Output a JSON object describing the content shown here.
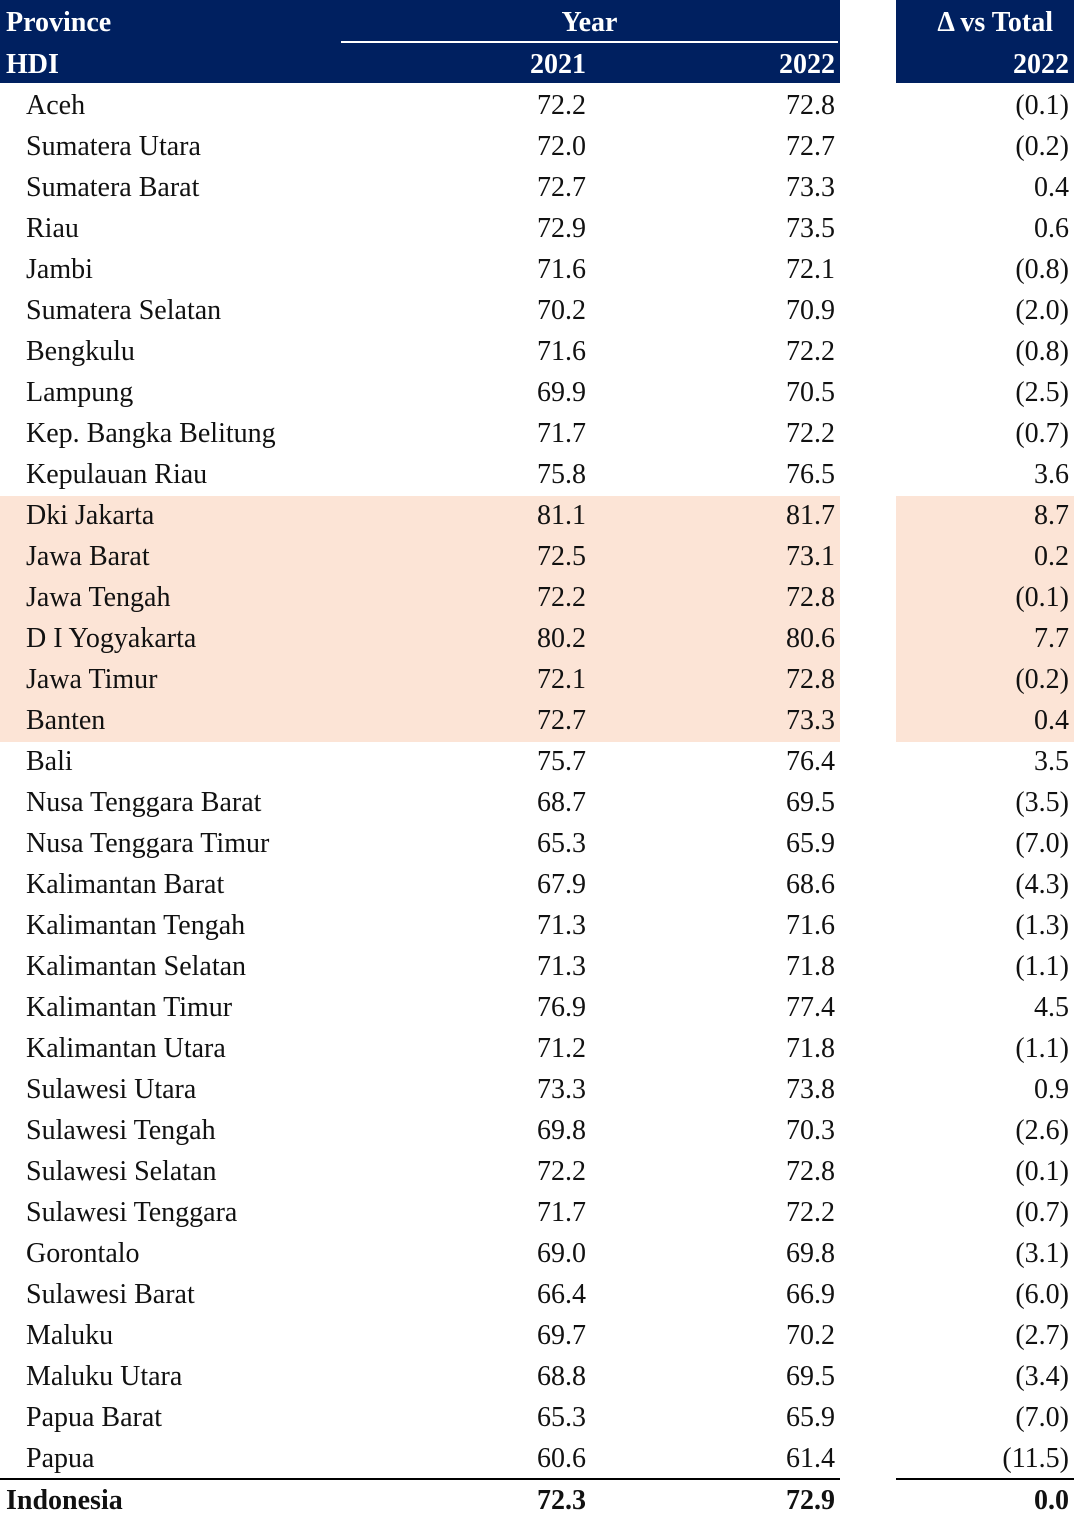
{
  "header": {
    "province": "Province",
    "group": "Year",
    "row_label": "HDI",
    "years": [
      "2021",
      "2022"
    ],
    "delta_title": "Δ vs Total",
    "delta_year": "2022"
  },
  "table": {
    "rows": [
      [
        "Aceh",
        "72.2",
        "72.8",
        "(0.1)"
      ],
      [
        "Sumatera Utara",
        "72.0",
        "72.7",
        "(0.2)"
      ],
      [
        "Sumatera Barat",
        "72.7",
        "73.3",
        "0.4"
      ],
      [
        "Riau",
        "72.9",
        "73.5",
        "0.6"
      ],
      [
        "Jambi",
        "71.6",
        "72.1",
        "(0.8)"
      ],
      [
        "Sumatera Selatan",
        "70.2",
        "70.9",
        "(2.0)"
      ],
      [
        "Bengkulu",
        "71.6",
        "72.2",
        "(0.8)"
      ],
      [
        "Lampung",
        "69.9",
        "70.5",
        "(2.5)"
      ],
      [
        "Kep. Bangka Belitung",
        "71.7",
        "72.2",
        "(0.7)"
      ],
      [
        "Kepulauan Riau",
        "75.8",
        "76.5",
        "3.6"
      ],
      [
        "Dki Jakarta",
        "81.1",
        "81.7",
        "8.7"
      ],
      [
        "Jawa Barat",
        "72.5",
        "73.1",
        "0.2"
      ],
      [
        "Jawa Tengah",
        "72.2",
        "72.8",
        "(0.1)"
      ],
      [
        "D I Yogyakarta",
        "80.2",
        "80.6",
        "7.7"
      ],
      [
        "Jawa Timur",
        "72.1",
        "72.8",
        "(0.2)"
      ],
      [
        "Banten",
        "72.7",
        "73.3",
        "0.4"
      ],
      [
        "Bali",
        "75.7",
        "76.4",
        "3.5"
      ],
      [
        "Nusa Tenggara Barat",
        "68.7",
        "69.5",
        "(3.5)"
      ],
      [
        "Nusa Tenggara Timur",
        "65.3",
        "65.9",
        "(7.0)"
      ],
      [
        "Kalimantan Barat",
        "67.9",
        "68.6",
        "(4.3)"
      ],
      [
        "Kalimantan Tengah",
        "71.3",
        "71.6",
        "(1.3)"
      ],
      [
        "Kalimantan Selatan",
        "71.3",
        "71.8",
        "(1.1)"
      ],
      [
        "Kalimantan Timur",
        "76.9",
        "77.4",
        "4.5"
      ],
      [
        "Kalimantan Utara",
        "71.2",
        "71.8",
        "(1.1)"
      ],
      [
        "Sulawesi Utara",
        "73.3",
        "73.8",
        "0.9"
      ],
      [
        "Sulawesi Tengah",
        "69.8",
        "70.3",
        "(2.6)"
      ],
      [
        "Sulawesi Selatan",
        "72.2",
        "72.8",
        "(0.1)"
      ],
      [
        "Sulawesi Tenggara",
        "71.7",
        "72.2",
        "(0.7)"
      ],
      [
        "Gorontalo",
        "69.0",
        "69.8",
        "(3.1)"
      ],
      [
        "Sulawesi Barat",
        "66.4",
        "66.9",
        "(6.0)"
      ],
      [
        "Maluku",
        "69.7",
        "70.2",
        "(2.7)"
      ],
      [
        "Maluku Utara",
        "68.8",
        "69.5",
        "(3.4)"
      ],
      [
        "Papua Barat",
        "65.3",
        "65.9",
        "(7.0)"
      ],
      [
        "Papua",
        "60.6",
        "61.4",
        "(11.5)"
      ]
    ],
    "highlighted_rows": [
      10,
      11,
      12,
      13,
      14,
      15
    ],
    "highlight_color": "#fce4d6",
    "header_color": "#002060",
    "total": [
      "Indonesia",
      "72.3",
      "72.9",
      "0.0"
    ]
  }
}
